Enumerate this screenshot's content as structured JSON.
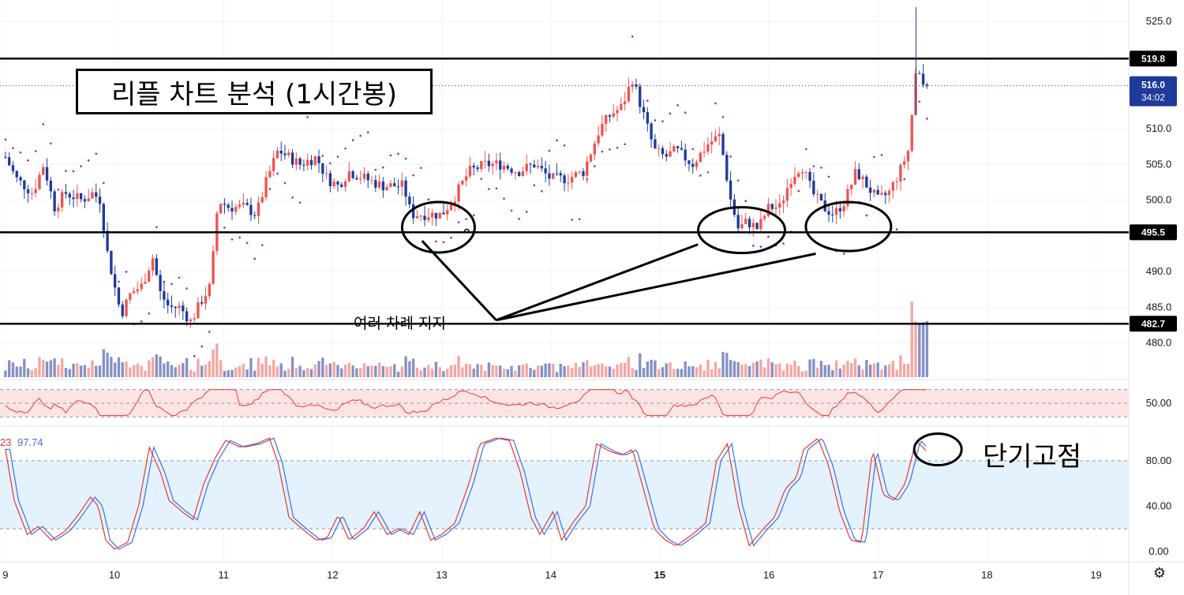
{
  "annotations": {
    "title": "리플 차트 분석 (1시간봉)",
    "support_note": "여러 차례 지지",
    "top_note": "단기고점"
  },
  "price_tags": {
    "last": "516.0",
    "countdown": "34:02"
  },
  "stoch_readout": {
    "k_partial": "23",
    "d": "97.74"
  },
  "colors": {
    "up": "#ef5350",
    "down": "#1e3a9a",
    "vol_up": "#f4a6a4",
    "vol_down": "#8491c6",
    "psar": "#a020c0",
    "rsi_line": "#e53935",
    "rsi_band": "#fde4e4",
    "stoch_k": "#e53935",
    "stoch_d": "#3f6ee8",
    "stoch_band": "#e3f2fd"
  },
  "icons": {
    "settings": "gear-icon"
  },
  "chart_data": [
    {
      "type": "candlestick",
      "price_ylim": [
        475,
        528
      ],
      "y_ticks": [
        "480.0",
        "485.0",
        "490.0",
        "495.0",
        "500.0",
        "505.0",
        "510.0",
        "515.0",
        "520.0",
        "525.0"
      ],
      "x_ticks": [
        "9",
        "10",
        "11",
        "12",
        "13",
        "14",
        "15",
        "16",
        "17",
        "18",
        "19"
      ],
      "x_tick_days": [
        9,
        10,
        11,
        12,
        13,
        14,
        15,
        16,
        17,
        18,
        19
      ],
      "x_range_days": [
        8.95,
        19.3
      ],
      "horizontal_levels": [
        {
          "value": 519.8,
          "label": "519.8"
        },
        {
          "value": 495.5,
          "label": "495.5"
        },
        {
          "value": 482.7,
          "label": "482.7"
        }
      ],
      "last_price": 516.0,
      "close_points": [
        [
          9.0,
          506
        ],
        [
          9.1,
          503
        ],
        [
          9.25,
          501
        ],
        [
          9.35,
          505
        ],
        [
          9.45,
          499
        ],
        [
          9.55,
          501
        ],
        [
          9.7,
          500
        ],
        [
          9.8,
          501
        ],
        [
          9.87,
          500
        ],
        [
          9.93,
          493
        ],
        [
          10.0,
          488
        ],
        [
          10.06,
          484
        ],
        [
          10.15,
          487
        ],
        [
          10.25,
          488
        ],
        [
          10.35,
          492
        ],
        [
          10.42,
          487
        ],
        [
          10.5,
          485
        ],
        [
          10.6,
          485
        ],
        [
          10.7,
          483
        ],
        [
          10.8,
          486
        ],
        [
          10.88,
          488
        ],
        [
          10.95,
          500
        ],
        [
          11.05,
          499
        ],
        [
          11.2,
          499
        ],
        [
          11.3,
          498
        ],
        [
          11.4,
          503
        ],
        [
          11.5,
          507
        ],
        [
          11.6,
          506
        ],
        [
          11.7,
          505
        ],
        [
          11.85,
          506
        ],
        [
          11.95,
          503
        ],
        [
          12.05,
          502
        ],
        [
          12.15,
          504
        ],
        [
          12.3,
          503
        ],
        [
          12.45,
          502
        ],
        [
          12.55,
          502
        ],
        [
          12.65,
          502
        ],
        [
          12.72,
          498
        ],
        [
          12.8,
          498
        ],
        [
          12.9,
          498
        ],
        [
          13.0,
          498
        ],
        [
          13.1,
          500
        ],
        [
          13.25,
          504
        ],
        [
          13.4,
          505
        ],
        [
          13.55,
          505
        ],
        [
          13.7,
          504
        ],
        [
          13.85,
          505
        ],
        [
          14.0,
          503
        ],
        [
          14.15,
          503
        ],
        [
          14.3,
          504
        ],
        [
          14.45,
          510
        ],
        [
          14.55,
          512
        ],
        [
          14.65,
          513
        ],
        [
          14.75,
          517
        ],
        [
          14.85,
          512
        ],
        [
          14.95,
          507
        ],
        [
          15.05,
          506
        ],
        [
          15.15,
          507
        ],
        [
          15.3,
          505
        ],
        [
          15.45,
          508
        ],
        [
          15.55,
          509
        ],
        [
          15.65,
          500
        ],
        [
          15.72,
          496
        ],
        [
          15.8,
          497
        ],
        [
          15.9,
          496
        ],
        [
          16.0,
          499
        ],
        [
          16.1,
          499
        ],
        [
          16.2,
          503
        ],
        [
          16.3,
          505
        ],
        [
          16.4,
          501
        ],
        [
          16.5,
          499
        ],
        [
          16.6,
          498
        ],
        [
          16.7,
          500
        ],
        [
          16.8,
          504
        ],
        [
          16.9,
          502
        ],
        [
          17.0,
          500
        ],
        [
          17.1,
          501
        ],
        [
          17.2,
          504
        ],
        [
          17.28,
          507
        ],
        [
          17.35,
          518
        ],
        [
          17.42,
          516
        ]
      ]
    },
    {
      "type": "line",
      "name": "RSI",
      "y_ticks": [
        "50.00"
      ],
      "bands": [
        30,
        50,
        70
      ]
    },
    {
      "type": "line",
      "name": "Stochastic",
      "y_ticks": [
        "0.00",
        "40.00",
        "80.00"
      ],
      "ylim": [
        -5,
        105
      ],
      "bands": [
        20,
        80
      ],
      "k_points": [
        [
          9.0,
          90
        ],
        [
          9.08,
          45
        ],
        [
          9.2,
          15
        ],
        [
          9.3,
          22
        ],
        [
          9.42,
          10
        ],
        [
          9.55,
          18
        ],
        [
          9.65,
          30
        ],
        [
          9.78,
          48
        ],
        [
          9.85,
          40
        ],
        [
          9.92,
          10
        ],
        [
          10.0,
          2
        ],
        [
          10.12,
          8
        ],
        [
          10.22,
          40
        ],
        [
          10.32,
          92
        ],
        [
          10.42,
          70
        ],
        [
          10.5,
          45
        ],
        [
          10.62,
          35
        ],
        [
          10.72,
          28
        ],
        [
          10.82,
          60
        ],
        [
          10.92,
          82
        ],
        [
          11.02,
          98
        ],
        [
          11.15,
          92
        ],
        [
          11.3,
          95
        ],
        [
          11.42,
          100
        ],
        [
          11.5,
          78
        ],
        [
          11.6,
          30
        ],
        [
          11.72,
          20
        ],
        [
          11.85,
          10
        ],
        [
          11.95,
          12
        ],
        [
          12.05,
          32
        ],
        [
          12.15,
          10
        ],
        [
          12.28,
          20
        ],
        [
          12.38,
          35
        ],
        [
          12.5,
          15
        ],
        [
          12.6,
          20
        ],
        [
          12.7,
          15
        ],
        [
          12.8,
          35
        ],
        [
          12.9,
          10
        ],
        [
          13.0,
          15
        ],
        [
          13.12,
          25
        ],
        [
          13.25,
          60
        ],
        [
          13.35,
          95
        ],
        [
          13.5,
          100
        ],
        [
          13.62,
          98
        ],
        [
          13.72,
          70
        ],
        [
          13.82,
          30
        ],
        [
          13.9,
          15
        ],
        [
          14.02,
          35
        ],
        [
          14.1,
          10
        ],
        [
          14.2,
          25
        ],
        [
          14.32,
          40
        ],
        [
          14.42,
          95
        ],
        [
          14.55,
          88
        ],
        [
          14.65,
          85
        ],
        [
          14.75,
          90
        ],
        [
          14.85,
          55
        ],
        [
          14.95,
          20
        ],
        [
          15.05,
          10
        ],
        [
          15.15,
          5
        ],
        [
          15.3,
          15
        ],
        [
          15.42,
          25
        ],
        [
          15.52,
          80
        ],
        [
          15.62,
          95
        ],
        [
          15.72,
          40
        ],
        [
          15.82,
          5
        ],
        [
          15.95,
          20
        ],
        [
          16.05,
          30
        ],
        [
          16.15,
          55
        ],
        [
          16.25,
          65
        ],
        [
          16.32,
          90
        ],
        [
          16.45,
          100
        ],
        [
          16.55,
          75
        ],
        [
          16.65,
          35
        ],
        [
          16.75,
          10
        ],
        [
          16.85,
          8
        ],
        [
          16.95,
          90
        ],
        [
          17.05,
          50
        ],
        [
          17.15,
          45
        ],
        [
          17.25,
          60
        ],
        [
          17.35,
          98
        ],
        [
          17.45,
          88
        ]
      ]
    }
  ]
}
